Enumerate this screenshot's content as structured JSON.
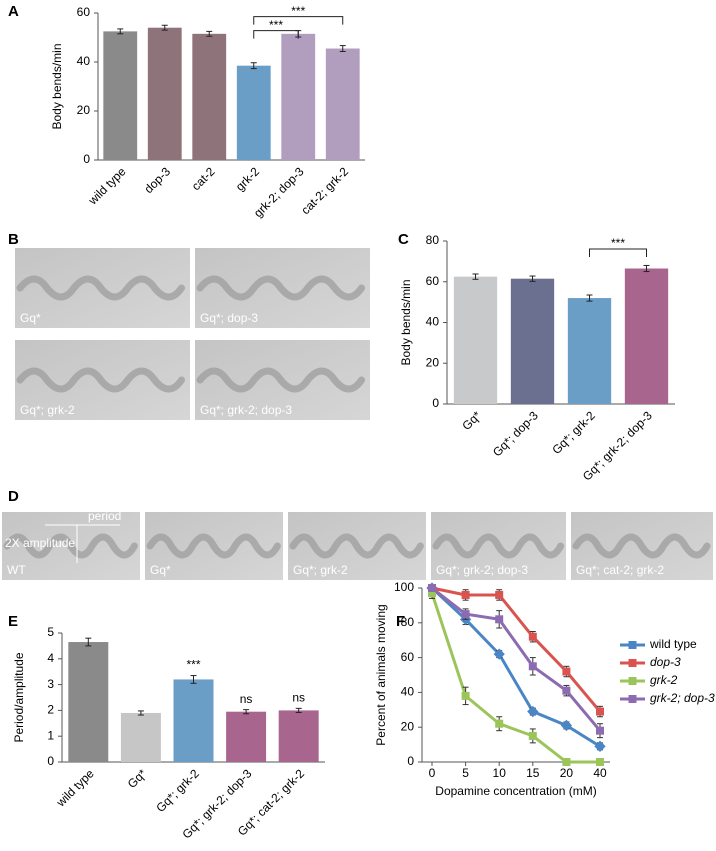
{
  "chart_data": [
    {
      "type": "bar",
      "panel": "A",
      "ylabel": "Body bends/min",
      "categories": [
        "wild type",
        "dop-3",
        "cat-2",
        "grk-2",
        "grk-2; dop-3",
        "cat-2; grk-2"
      ],
      "values": [
        52.5,
        54,
        51.5,
        38.5,
        51.5,
        45.5
      ],
      "errors": [
        1,
        1,
        1,
        1.2,
        1.3,
        1.2
      ],
      "colors": [
        "#8a8a8a",
        "#8f737a",
        "#8f737a",
        "#6a9ec7",
        "#b19ebf",
        "#b19ebf"
      ],
      "ylim": [
        0,
        60
      ],
      "yticks": [
        0,
        20,
        40,
        60
      ],
      "brackets": [
        {
          "from": 3,
          "to": 4,
          "label": "***"
        },
        {
          "from": 3,
          "to": 5,
          "label": "***"
        }
      ]
    },
    {
      "type": "bar",
      "panel": "C",
      "ylabel": "Body bends/min",
      "categories": [
        "Gq*",
        "Gq*; dop-3",
        "Gq*; grk-2",
        "Gq*; grk-2; dop-3"
      ],
      "values": [
        62.5,
        61.5,
        52,
        66.5
      ],
      "errors": [
        1.3,
        1.3,
        1.5,
        1.5
      ],
      "colors": [
        "#c8c9cb",
        "#6b7090",
        "#6a9ec7",
        "#a8668f"
      ],
      "ylim": [
        0,
        80
      ],
      "yticks": [
        0,
        20,
        40,
        60,
        80
      ],
      "brackets": [
        {
          "from": 2,
          "to": 3,
          "label": "***"
        }
      ]
    },
    {
      "type": "bar",
      "panel": "E",
      "ylabel": "Period/amplitude",
      "categories": [
        "wild type",
        "Gq*",
        "Gq*; grk-2",
        "Gq*; grk-2; dop-3",
        "Gq*; cat-2; grk-2"
      ],
      "values": [
        4.65,
        1.9,
        3.2,
        1.95,
        2.0
      ],
      "errors": [
        0.15,
        0.08,
        0.15,
        0.08,
        0.08
      ],
      "bar_labels": [
        null,
        null,
        "***",
        "ns",
        "ns"
      ],
      "colors": [
        "#8a8a8a",
        "#c6c6c6",
        "#6a9ec7",
        "#a8668f",
        "#a8668f"
      ],
      "ylim": [
        0,
        5
      ],
      "yticks": [
        0,
        1,
        2,
        3,
        4,
        5
      ]
    },
    {
      "type": "line",
      "panel": "F",
      "xlabel": "Dopamine concentration (mM)",
      "ylabel": "Percent of animals moving",
      "categories": [
        "0",
        "5",
        "10",
        "15",
        "20",
        "40"
      ],
      "ylim": [
        0,
        100
      ],
      "yticks": [
        0,
        20,
        40,
        60,
        80,
        100
      ],
      "series": [
        {
          "name": "wild type",
          "color": "#4a86c5",
          "values": [
            100,
            82,
            62,
            29,
            21,
            9
          ],
          "errors": [
            2,
            3,
            2,
            2,
            2,
            2
          ]
        },
        {
          "name": "dop-3",
          "color": "#d9534f",
          "values": [
            100,
            96,
            96,
            72,
            52,
            29
          ],
          "errors": [
            2,
            3,
            3,
            3,
            3,
            3
          ]
        },
        {
          "name": "grk-2",
          "color": "#9bc45a",
          "values": [
            97,
            38,
            22,
            15,
            0,
            0
          ],
          "errors": [
            3,
            5,
            4,
            4,
            0,
            0
          ]
        },
        {
          "name": "grk-2; dop-3",
          "color": "#8c6bb1",
          "values": [
            100,
            85,
            82,
            55,
            41,
            18
          ],
          "errors": [
            2,
            3,
            5,
            5,
            3,
            4
          ]
        }
      ]
    }
  ],
  "images": [
    {
      "panel": "B",
      "captions": [
        "Gq*",
        "Gq*; dop-3",
        "Gq*; grk-2",
        "Gq*; grk-2; dop-3"
      ]
    },
    {
      "panel": "D",
      "captions": [
        "WT",
        "Gq*",
        "Gq*; grk-2",
        "Gq*; grk-2; dop-3",
        "Gq*; cat-2; grk-2"
      ],
      "annotations": [
        "period",
        "2X amplitude"
      ]
    }
  ]
}
